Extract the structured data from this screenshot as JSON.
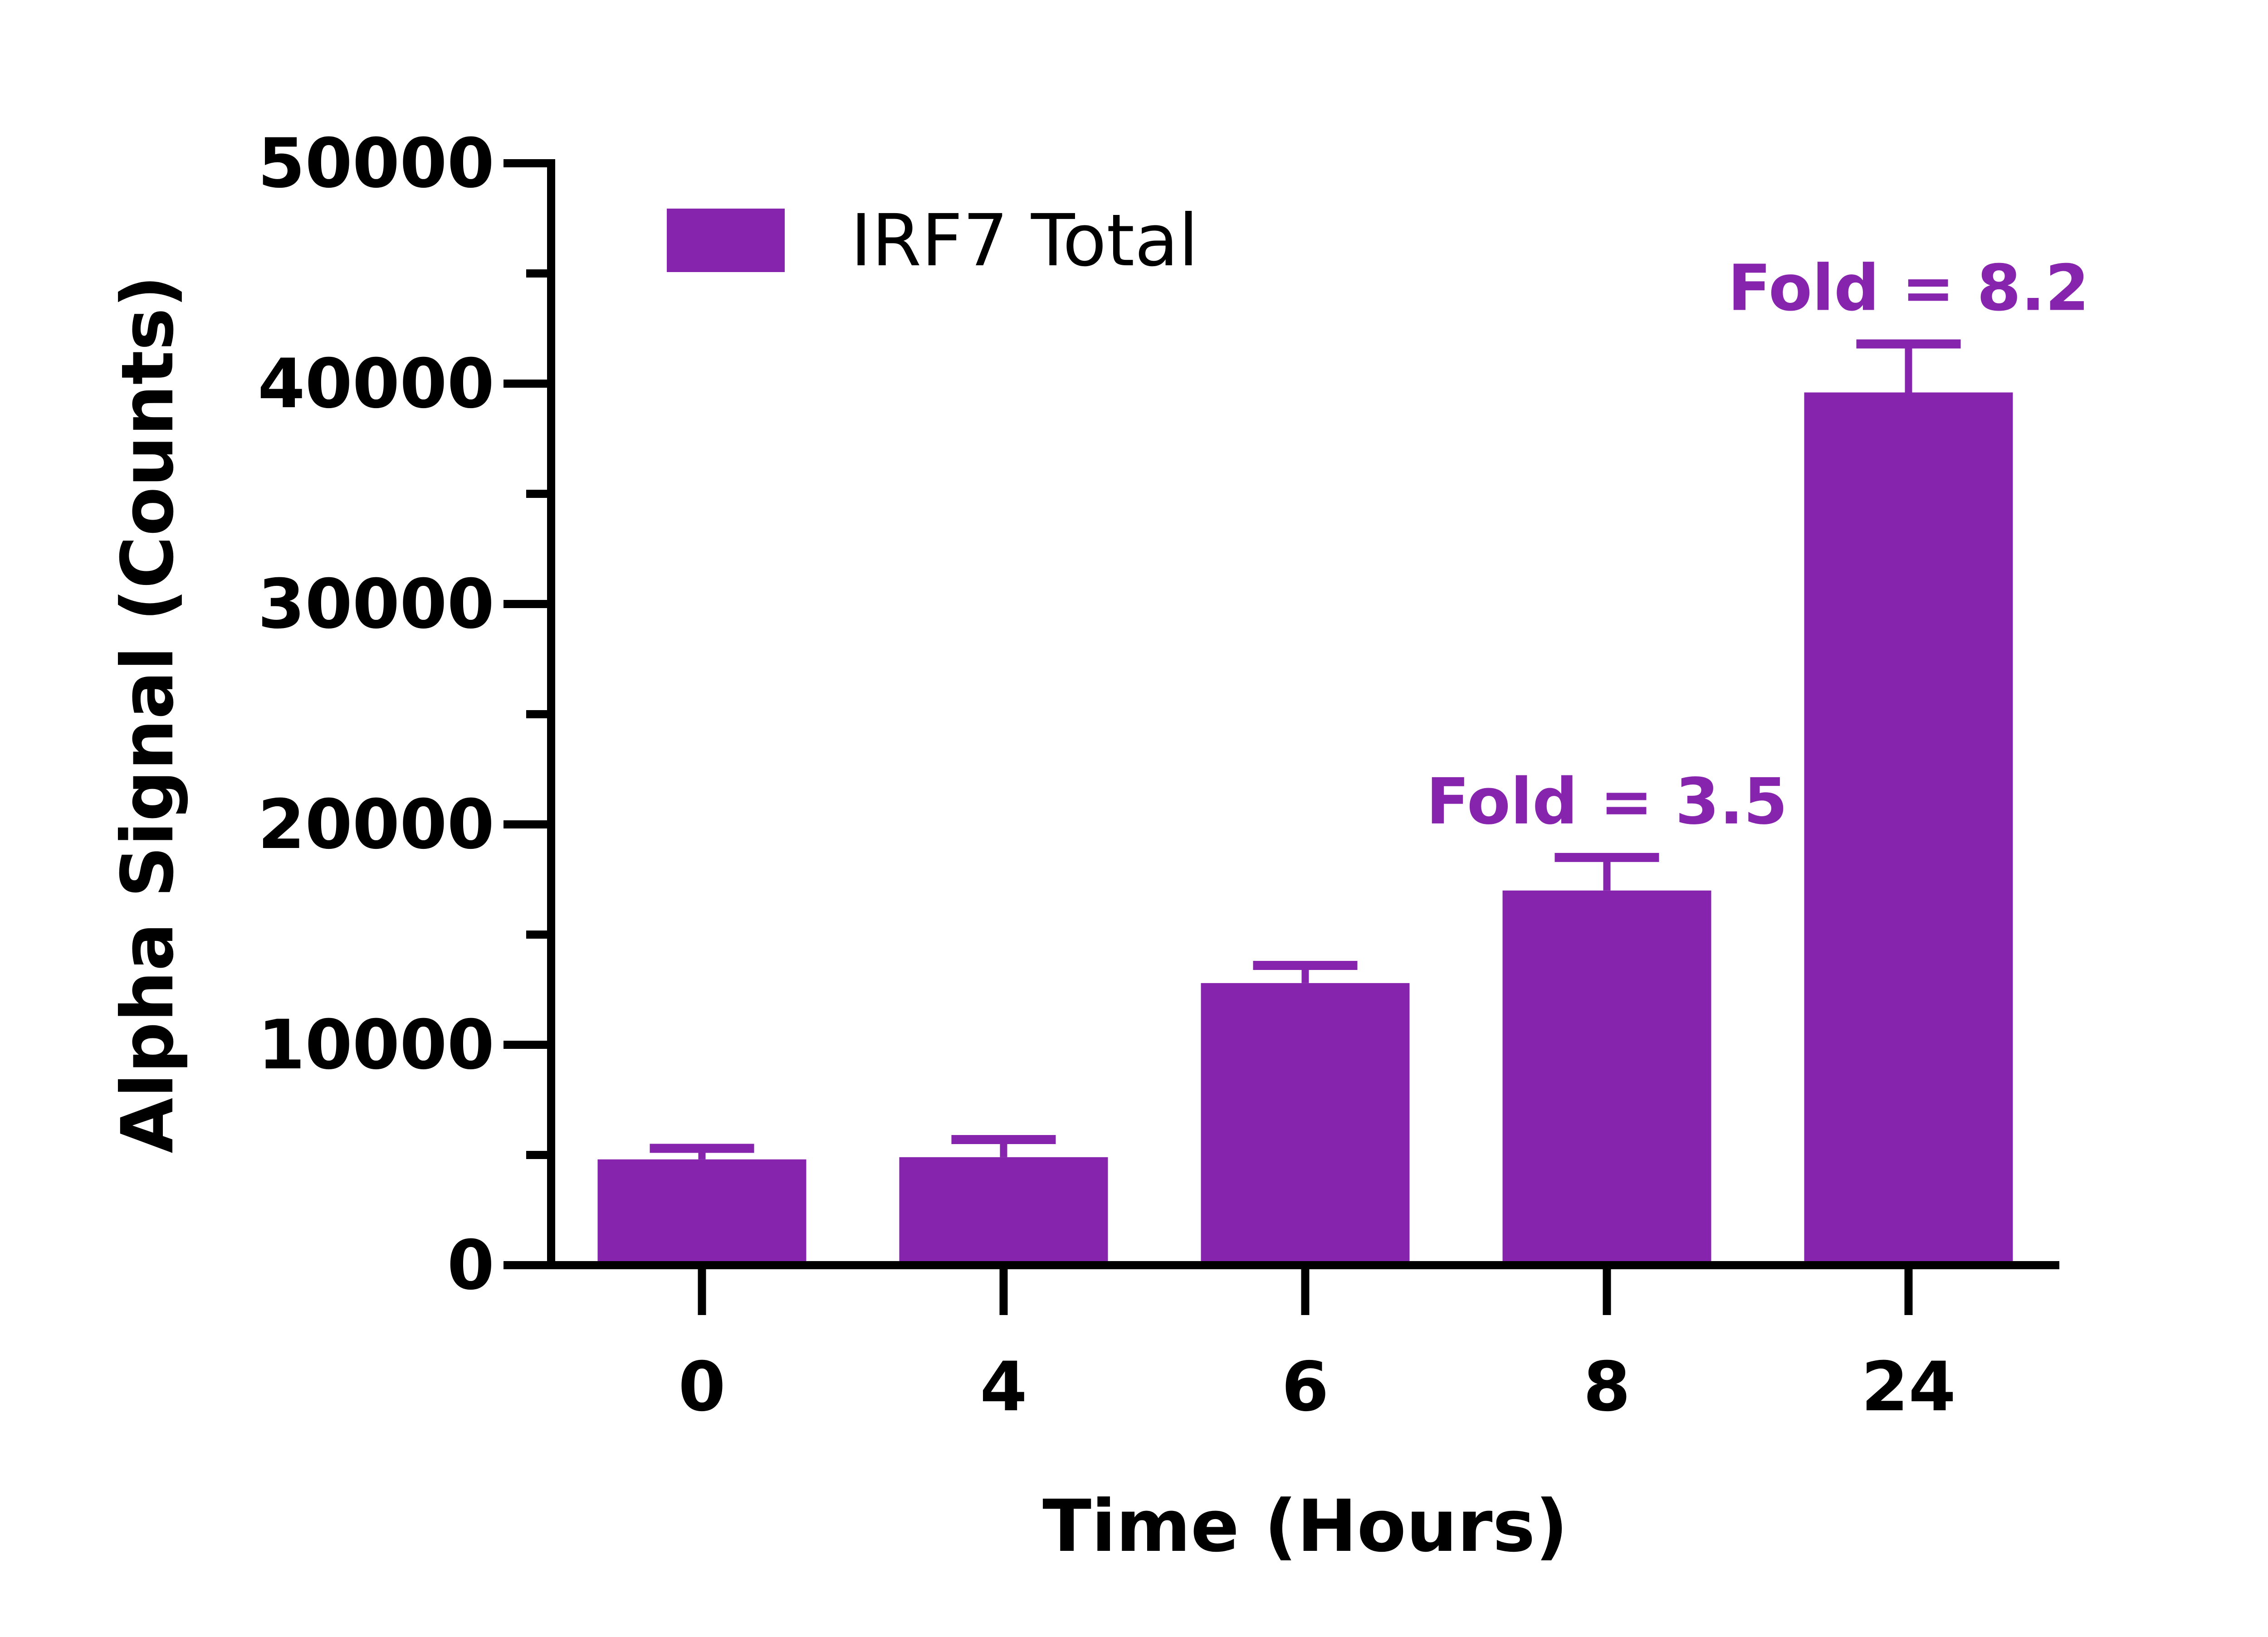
{
  "chart_data": {
    "type": "bar",
    "categories": [
      "0",
      "4",
      "6",
      "8",
      "24"
    ],
    "series": [
      {
        "name": "IRF7 Total",
        "values": [
          4800,
          4900,
          12800,
          17000,
          39600
        ],
        "error": [
          500,
          800,
          800,
          1500,
          2200
        ]
      }
    ],
    "xlabel": "Time (Hours)",
    "ylabel": "Alpha Signal (Counts)",
    "ylim": [
      0,
      50000
    ],
    "yticks": [
      0,
      10000,
      20000,
      30000,
      40000,
      50000
    ],
    "yticks_labels": [
      "0",
      "10000",
      "20000",
      "30000",
      "40000",
      "50000"
    ],
    "minor_yticks": [
      5000,
      15000,
      25000,
      35000,
      45000
    ],
    "grid": false,
    "legend_position": "top-left",
    "annotations": [
      {
        "category": "8",
        "text": "Fold = 3.5"
      },
      {
        "category": "24",
        "text": "Fold = 8.2"
      }
    ],
    "colors": {
      "bar": "#8624ae",
      "annotation": "#8624ae",
      "axis": "#000000"
    }
  }
}
